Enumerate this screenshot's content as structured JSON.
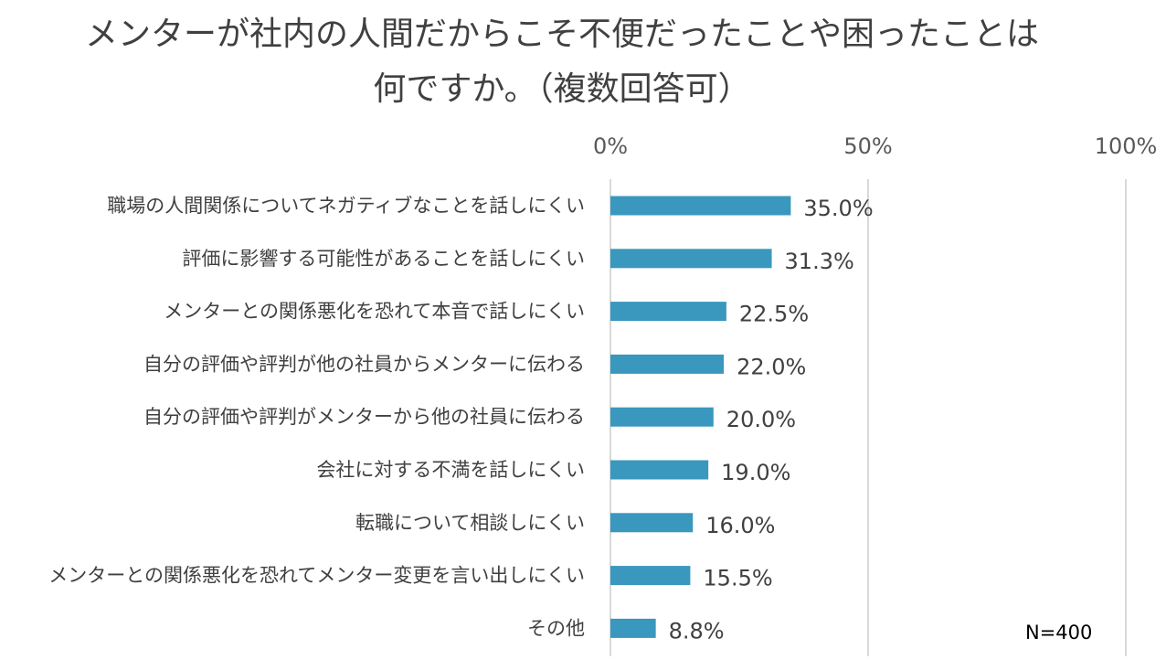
{
  "title_lines": [
    "メンターが社内の人間だからこそ不便だったことや困ったことは",
    "何ですか。（複数回答可）"
  ],
  "note": "N=400",
  "colors": {
    "bar": "#3a97bd",
    "grid": "#d9d9d9",
    "text": "#404040"
  },
  "chart_data": {
    "type": "bar",
    "orientation": "horizontal",
    "categories": [
      "職場の人間関係についてネガティブなことを話しにくい",
      "評価に影響する可能性があることを話しにくい",
      "メンターとの関係悪化を恐れて本音で話しにくい",
      "自分の評価や評判が他の社員からメンターに伝わる",
      "自分の評価や評判がメンターから他の社員に伝わる",
      "会社に対する不満を話しにくい",
      "転職について相談しにくい",
      "メンターとの関係悪化を恐れてメンター変更を言い出しにくい",
      "その他"
    ],
    "values": [
      35.0,
      31.3,
      22.5,
      22.0,
      20.0,
      19.0,
      16.0,
      15.5,
      8.8
    ],
    "value_labels": [
      "35.0%",
      "31.3%",
      "22.5%",
      "22.0%",
      "20.0%",
      "19.0%",
      "16.0%",
      "15.5%",
      "8.8%"
    ],
    "xlim": [
      0,
      100
    ],
    "xticks": [
      0,
      50,
      100
    ],
    "xtick_labels": [
      "0%",
      "50%",
      "100%"
    ],
    "axis_position": "top",
    "grid": true,
    "legend": false
  }
}
